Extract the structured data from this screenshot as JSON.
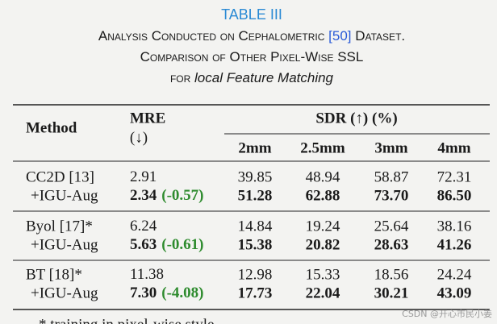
{
  "title": "TABLE III",
  "caption": {
    "lines": [
      [
        {
          "text": "Analysis Conducted on Cephalometric ",
          "style": "plain"
        },
        {
          "text": "[50]",
          "style": "link"
        },
        {
          "text": " Dataset.",
          "style": "plain"
        }
      ],
      [
        {
          "text": "Comparison of Other Pixel-Wise SSL",
          "style": "plain"
        }
      ],
      [
        {
          "text": "for ",
          "style": "plain"
        },
        {
          "text": "local Feature Matching",
          "style": "italic"
        }
      ]
    ]
  },
  "table": {
    "header": {
      "method": "Method",
      "mre": "MRE",
      "mre_direction": "(↓)",
      "sdr": "SDR (↑) (%)",
      "thresholds": [
        "2mm",
        "2.5mm",
        "3mm",
        "4mm"
      ]
    },
    "groups": [
      {
        "base": {
          "method": "CC2D [13]",
          "mre": "2.91",
          "sdr": [
            "39.85",
            "48.94",
            "58.87",
            "72.31"
          ]
        },
        "aug": {
          "method": "+IGU-Aug",
          "mre": "2.34",
          "delta": "(-0.57)",
          "sdr": [
            "51.28",
            "62.88",
            "73.70",
            "86.50"
          ]
        }
      },
      {
        "base": {
          "method": "Byol [17]*",
          "mre": "6.24",
          "sdr": [
            "14.84",
            "19.24",
            "25.64",
            "38.16"
          ]
        },
        "aug": {
          "method": "+IGU-Aug",
          "mre": "5.63",
          "delta": "(-0.61)",
          "sdr": [
            "15.38",
            "20.82",
            "28.63",
            "41.26"
          ]
        }
      },
      {
        "base": {
          "method": "BT [18]*",
          "mre": "11.38",
          "sdr": [
            "12.98",
            "15.33",
            "18.56",
            "24.24"
          ]
        },
        "aug": {
          "method": "+IGU-Aug",
          "mre": "7.30",
          "delta": "(-4.08)",
          "sdr": [
            "17.73",
            "22.04",
            "30.21",
            "43.09"
          ]
        }
      }
    ]
  },
  "footnote": "* training in pixel-wise style",
  "watermark": "CSDN @开心市民小姜"
}
